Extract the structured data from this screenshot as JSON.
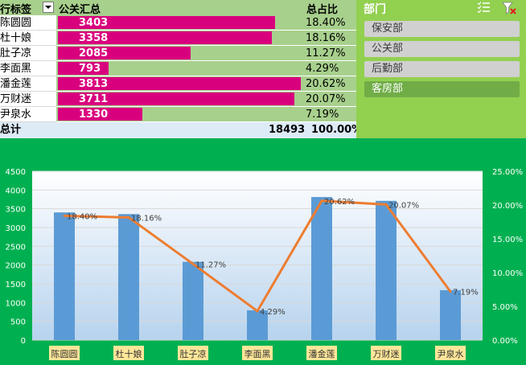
{
  "pivot": {
    "header": {
      "row_label": "行标签",
      "sum_label": "公关汇总",
      "pct_label": "总占比"
    },
    "rows": [
      {
        "name": "陈圆圆",
        "value": "3403",
        "pct": "18.40%"
      },
      {
        "name": "杜十娘",
        "value": "3358",
        "pct": "18.16%"
      },
      {
        "name": "肚子凉",
        "value": "2085",
        "pct": "11.27%"
      },
      {
        "name": "李面黑",
        "value": "793",
        "pct": "4.29%"
      },
      {
        "name": "潘金莲",
        "value": "3813",
        "pct": "20.62%"
      },
      {
        "name": "万财迷",
        "value": "3711",
        "pct": "20.07%"
      },
      {
        "name": "尹泉水",
        "value": "1330",
        "pct": "7.19%"
      }
    ],
    "total": {
      "label": "总计",
      "value": "18493",
      "pct": "100.00%"
    }
  },
  "slicer": {
    "title": "部门",
    "items": [
      {
        "label": "保安部",
        "selected": false
      },
      {
        "label": "公关部",
        "selected": false
      },
      {
        "label": "后勤部",
        "selected": false
      },
      {
        "label": "客房部",
        "selected": true
      }
    ]
  },
  "colors": {
    "bar_highlight": "#d9007e",
    "chart_bg": "#00b050",
    "column": "#5b9bd5",
    "line": "#ed7d31",
    "slicer_bg": "#92d050"
  },
  "chart_data": {
    "type": "bar",
    "categories": [
      "陈圆圆",
      "杜十娘",
      "肚子凉",
      "李面黑",
      "潘金莲",
      "万财迷",
      "尹泉水"
    ],
    "series": [
      {
        "type": "bar",
        "axis": "left",
        "values": [
          3403,
          3358,
          2085,
          793,
          3813,
          3711,
          1330
        ]
      },
      {
        "type": "line",
        "axis": "right",
        "values": [
          18.4,
          18.16,
          11.27,
          4.29,
          20.62,
          20.07,
          7.19
        ],
        "labels": [
          "18.40%",
          "18.16%",
          "11.27%",
          "4.29%",
          "20.62%",
          "20.07%",
          "7.19%"
        ]
      }
    ],
    "y_left": {
      "ylim": [
        0,
        4500
      ],
      "ticks": [
        "0",
        "500",
        "1000",
        "1500",
        "2000",
        "2500",
        "3000",
        "3500",
        "4000",
        "4500"
      ]
    },
    "y_right": {
      "ylim": [
        0,
        25
      ],
      "ticks": [
        "0.00%",
        "5.00%",
        "10.00%",
        "15.00%",
        "20.00%",
        "25.00%"
      ]
    },
    "grid": true,
    "legend": "none"
  }
}
